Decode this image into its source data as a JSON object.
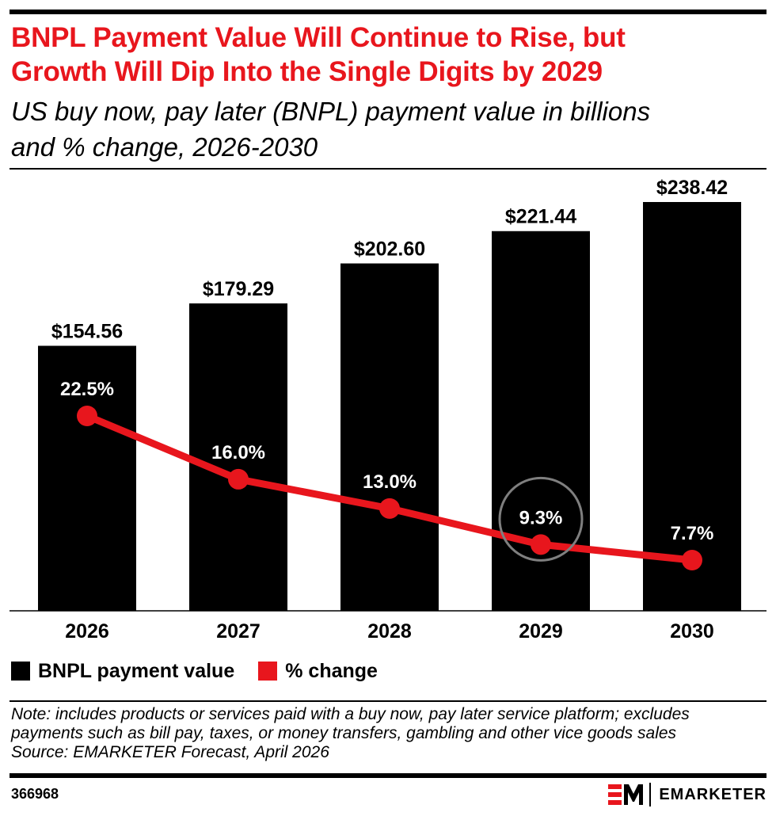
{
  "header": {
    "title_line1": "BNPL Payment Value Will Continue to Rise, but",
    "title_line2": "Growth Will Dip Into the Single Digits by 2029",
    "subtitle_line1": "US buy now, pay later (BNPL) payment value in billions",
    "subtitle_line2": "and % change, 2026-2030"
  },
  "colors": {
    "bar": "#000000",
    "line": "#e8161d",
    "highlight_ring": "#7f7f7f"
  },
  "chart_data": {
    "type": "bar",
    "categories": [
      "2026",
      "2027",
      "2028",
      "2029",
      "2030"
    ],
    "series": [
      {
        "name": "BNPL payment value",
        "type": "bar",
        "values": [
          154.56,
          179.29,
          202.6,
          221.44,
          238.42
        ],
        "labels": [
          "$154.56",
          "$179.29",
          "$202.60",
          "$221.44",
          "$238.42"
        ]
      },
      {
        "name": "% change",
        "type": "line",
        "values": [
          22.5,
          16.0,
          13.0,
          9.3,
          7.7
        ],
        "labels": [
          "22.5%",
          "16.0%",
          "13.0%",
          "9.3%",
          "7.7%"
        ]
      }
    ],
    "highlighted_category": "2029",
    "grid": false,
    "legend_position": "bottom-left"
  },
  "footer": {
    "note_line1": "Note: includes products or services paid with a buy now, pay later service platform; excludes",
    "note_line2": "payments such as bill pay, taxes, or money transfers, gambling and other vice goods sales",
    "source": "Source:  EMARKETER Forecast, April 2026",
    "chart_id": "366968",
    "brand_mark": "EM",
    "brand_name": "EMARKETER"
  }
}
